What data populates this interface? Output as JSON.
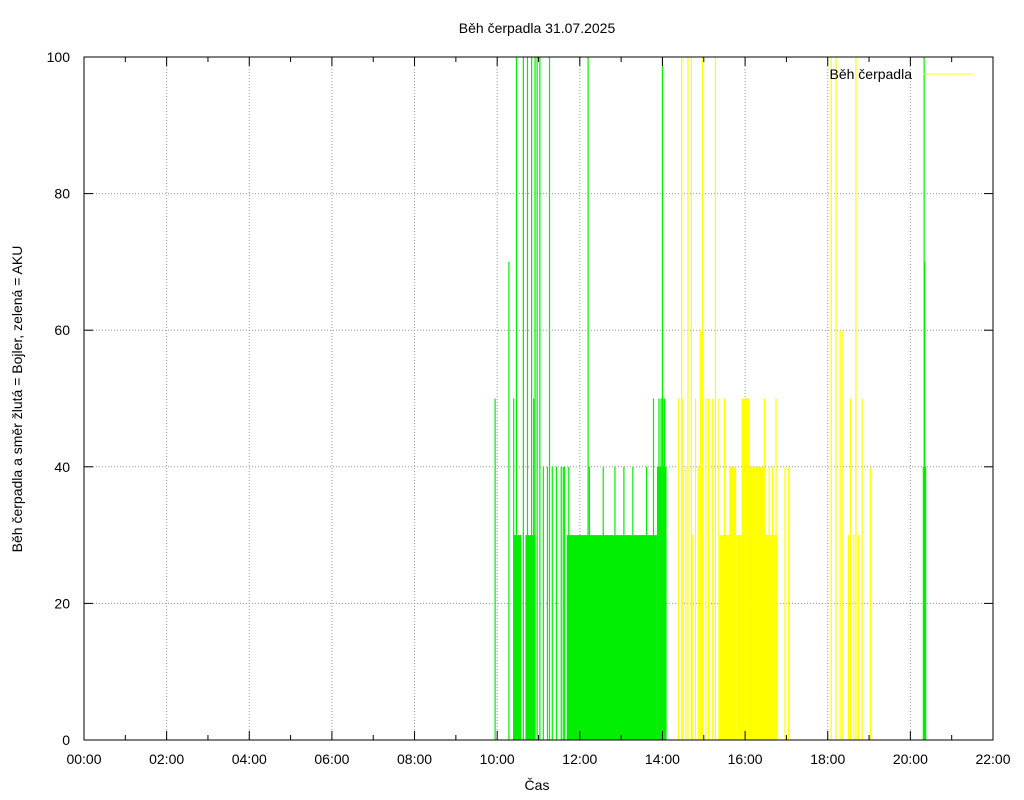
{
  "chart_data": {
    "type": "bar",
    "title": "Běh čerpadla 31.07.2025",
    "xlabel": "Čas",
    "ylabel": "Běh čerpadla a směr žlutá = Bojler, zelená = AKU",
    "xlim_hours": [
      0,
      22
    ],
    "ylim": [
      0,
      100
    ],
    "x_ticks": [
      "00:00",
      "02:00",
      "04:00",
      "06:00",
      "08:00",
      "10:00",
      "12:00",
      "14:00",
      "16:00",
      "18:00",
      "20:00",
      "22:00"
    ],
    "y_ticks": [
      0,
      20,
      40,
      60,
      80,
      100
    ],
    "grid": true,
    "legend": {
      "position": "top-right",
      "label": "Běh čerpadla",
      "color": "#ffff00"
    },
    "colors": {
      "aku": "#00ee00",
      "bojler": "#ffff00"
    },
    "series": [
      {
        "name": "AKU",
        "color": "#00ee00",
        "spikes": [
          [
            "09:57",
            50
          ],
          [
            "10:17",
            70
          ],
          [
            "10:24",
            50
          ],
          [
            "10:28",
            100
          ],
          [
            "10:38",
            100
          ],
          [
            "10:44",
            100
          ],
          [
            "10:50",
            100
          ],
          [
            "10:53",
            50
          ],
          [
            "10:55",
            100
          ],
          [
            "10:58",
            100
          ],
          [
            "11:02",
            100
          ],
          [
            "11:07",
            40
          ],
          [
            "11:13",
            40
          ],
          [
            "11:16",
            100
          ],
          [
            "11:20",
            40
          ],
          [
            "11:26",
            40
          ],
          [
            "11:33",
            40
          ],
          [
            "11:36",
            40
          ],
          [
            "11:38",
            40
          ],
          [
            "11:44",
            40
          ],
          [
            "12:12",
            100
          ],
          [
            "12:14",
            40
          ],
          [
            "12:34",
            40
          ],
          [
            "12:51",
            40
          ],
          [
            "13:04",
            40
          ],
          [
            "13:17",
            40
          ],
          [
            "13:37",
            40
          ],
          [
            "13:47",
            50
          ],
          [
            "13:55",
            50
          ],
          [
            "13:58",
            50
          ],
          [
            "14:00",
            100
          ],
          [
            "14:01",
            50
          ],
          [
            "14:03",
            50
          ],
          [
            "20:20",
            100
          ],
          [
            "20:21",
            70
          ],
          [
            "20:22",
            40
          ]
        ],
        "blocks": [
          [
            "10:23",
            "10:35",
            30
          ],
          [
            "10:41",
            "10:55",
            30
          ],
          [
            "11:41",
            "13:52",
            30
          ],
          [
            "13:52",
            "14:06",
            40
          ],
          [
            "20:18",
            "20:23",
            40
          ]
        ]
      },
      {
        "name": "Bojler",
        "color": "#ffff00",
        "spikes": [
          [
            "14:23",
            50
          ],
          [
            "14:28",
            100
          ],
          [
            "14:30",
            50
          ],
          [
            "14:34",
            40
          ],
          [
            "14:37",
            100
          ],
          [
            "14:42",
            100
          ],
          [
            "14:44",
            30
          ],
          [
            "14:48",
            50
          ],
          [
            "14:52",
            40
          ],
          [
            "14:55",
            60
          ],
          [
            "14:58",
            100
          ],
          [
            "15:03",
            50
          ],
          [
            "15:07",
            50
          ],
          [
            "15:13",
            50
          ],
          [
            "15:17",
            100
          ],
          [
            "15:22",
            50
          ],
          [
            "15:30",
            50
          ],
          [
            "16:05",
            50
          ],
          [
            "16:28",
            50
          ],
          [
            "16:35",
            40
          ],
          [
            "16:40",
            40
          ],
          [
            "16:45",
            50
          ],
          [
            "16:58",
            40
          ],
          [
            "17:03",
            40
          ],
          [
            "18:05",
            100
          ],
          [
            "18:12",
            100
          ],
          [
            "18:18",
            60
          ],
          [
            "18:22",
            60
          ],
          [
            "18:30",
            30
          ],
          [
            "18:33",
            50
          ],
          [
            "18:38",
            30
          ],
          [
            "18:41",
            100
          ],
          [
            "18:45",
            30
          ],
          [
            "18:50",
            50
          ],
          [
            "19:02",
            40
          ]
        ],
        "blocks": [
          [
            "15:23",
            "15:37",
            30
          ],
          [
            "15:37",
            "15:47",
            40
          ],
          [
            "15:47",
            "15:55",
            30
          ],
          [
            "15:55",
            "16:03",
            50
          ],
          [
            "16:03",
            "16:27",
            40
          ],
          [
            "16:27",
            "16:47",
            30
          ]
        ]
      }
    ]
  }
}
